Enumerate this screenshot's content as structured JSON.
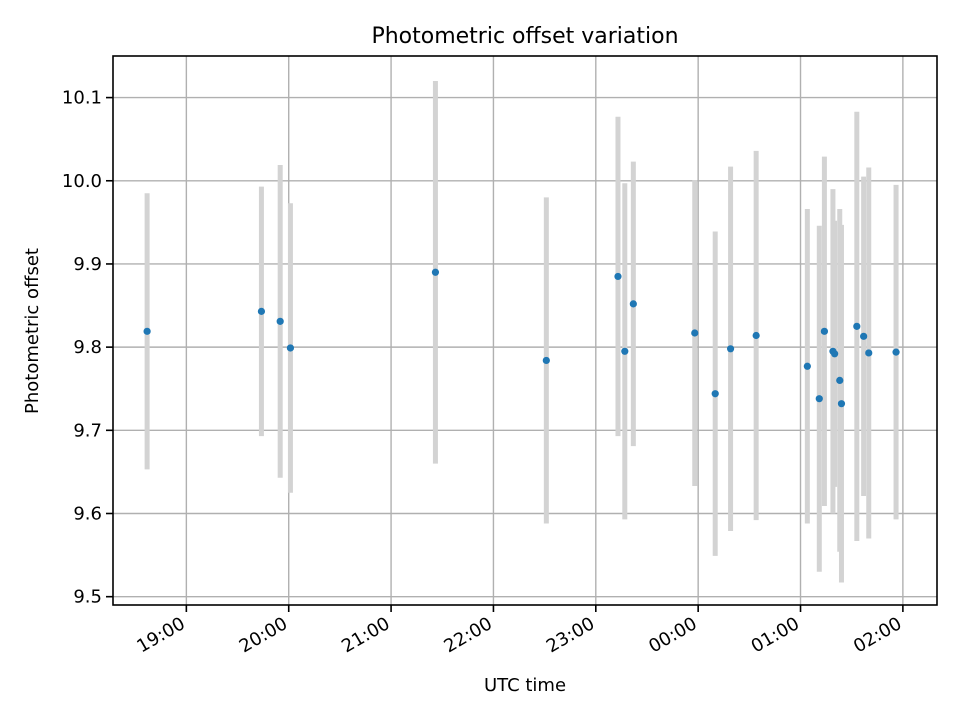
{
  "chart_data": {
    "type": "scatter",
    "title": "Photometric offset variation",
    "xlabel": "UTC time",
    "ylabel": "Photometric offset",
    "x_ticks": [
      "19:00",
      "20:00",
      "21:00",
      "22:00",
      "23:00",
      "00:00",
      "01:00",
      "02:00"
    ],
    "y_ticks": [
      "9.5",
      "9.6",
      "9.7",
      "9.8",
      "9.9",
      "10.0",
      "10.1"
    ],
    "xlim": [
      "18:17",
      "02:20"
    ],
    "ylim": [
      9.49,
      10.15
    ],
    "grid": true,
    "points": [
      {
        "x": "18:37",
        "y": 9.819,
        "err": 0.166
      },
      {
        "x": "19:44",
        "y": 9.843,
        "err": 0.15
      },
      {
        "x": "19:55",
        "y": 9.831,
        "err": 0.188
      },
      {
        "x": "20:01",
        "y": 9.799,
        "err": 0.174
      },
      {
        "x": "21:26",
        "y": 9.89,
        "err": 0.23
      },
      {
        "x": "22:31",
        "y": 9.784,
        "err": 0.196
      },
      {
        "x": "23:13",
        "y": 9.885,
        "err": 0.192
      },
      {
        "x": "23:17",
        "y": 9.795,
        "err": 0.202
      },
      {
        "x": "23:22",
        "y": 9.852,
        "err": 0.171
      },
      {
        "x": "23:58",
        "y": 9.817,
        "err": 0.184
      },
      {
        "x": "00:10",
        "y": 9.744,
        "err": 0.195
      },
      {
        "x": "00:19",
        "y": 9.798,
        "err": 0.219
      },
      {
        "x": "00:34",
        "y": 9.814,
        "err": 0.222
      },
      {
        "x": "01:04",
        "y": 9.777,
        "err": 0.189
      },
      {
        "x": "01:11",
        "y": 9.738,
        "err": 0.208
      },
      {
        "x": "01:14",
        "y": 9.819,
        "err": 0.21
      },
      {
        "x": "01:19",
        "y": 9.795,
        "err": 0.195
      },
      {
        "x": "01:20",
        "y": 9.792,
        "err": 0.16
      },
      {
        "x": "01:23",
        "y": 9.76,
        "err": 0.206
      },
      {
        "x": "01:24",
        "y": 9.732,
        "err": 0.215
      },
      {
        "x": "01:33",
        "y": 9.825,
        "err": 0.258
      },
      {
        "x": "01:37",
        "y": 9.813,
        "err": 0.192
      },
      {
        "x": "01:40",
        "y": 9.793,
        "err": 0.223
      },
      {
        "x": "01:56",
        "y": 9.794,
        "err": 0.201
      }
    ]
  }
}
